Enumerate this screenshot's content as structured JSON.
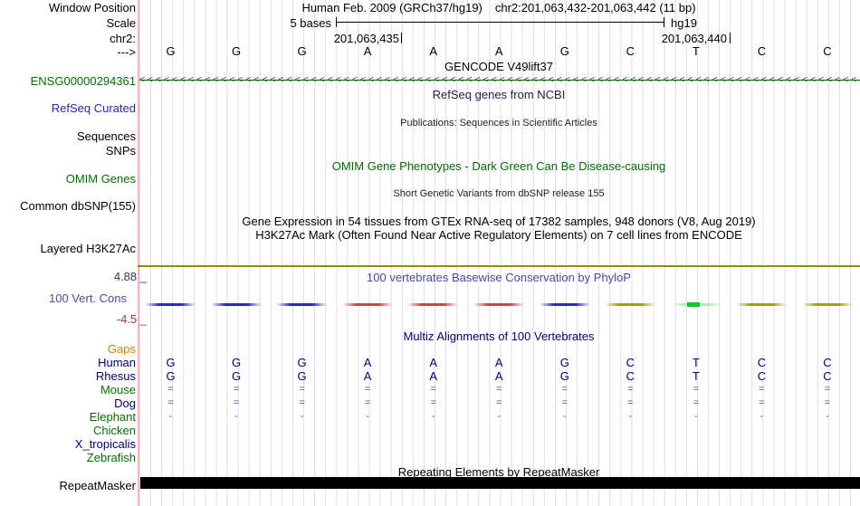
{
  "colors": {
    "grid_line": "#dcdcee",
    "left_edge_line": "#ffb3b3",
    "green_label": "#007200",
    "green_title": "#006e00",
    "dark_green_gene_line": "#005e00",
    "blue_label": "#2626bb",
    "navy": "#000080",
    "orange_gaps": "#d88000",
    "olive_baseline": "#998a00",
    "maroon_min": "#993939",
    "cons_title_blue": "#4a4aa8",
    "cons_blue": "#2929cc",
    "cons_red": "#cc4444",
    "cons_olive": "#a0a000",
    "cons_light_green": "#b4ecb4",
    "cons_bright_green": "#00cc33"
  },
  "header": {
    "assembly": "Human Feb. 2009 (GRCh37/hg19)",
    "position": "chr2:201,063,432-201,063,442 (11 bp)",
    "scale_value": "5 bases",
    "genome": "hg19",
    "tick_left": "201,063,435",
    "tick_right": "201,063,440"
  },
  "left_labels": {
    "window_position": "Window Position",
    "scale": "Scale",
    "chromosome": "chr2:",
    "strand": "--->",
    "gene_id": "ENSG00000294361",
    "refseq": "RefSeq Curated",
    "sequences": "Sequences",
    "snps": "SNPs",
    "omim": "OMIM Genes",
    "dbsnp": "Common dbSNP(155)",
    "h3k27ac": "Layered H3K27Ac",
    "cons_max": "4.88 _",
    "cons_name": "100 Vert. Cons",
    "cons_min": "-4.5 _",
    "repeatmasker": "RepeatMasker"
  },
  "track_titles": {
    "gencode": "GENCODE V49lift37",
    "refseq": "RefSeq genes from NCBI",
    "publications": "Publications: Sequences in Scientific Articles",
    "omim": "OMIM Gene Phenotypes - Dark Green Can Be Disease-causing",
    "dbsnp": "Short Genetic Variants from dbSNP release 155",
    "gtex": "Gene Expression in 54 tissues from GTEx RNA-seq of 17382 samples, 948 donors (V8, Aug 2019)",
    "h3k27ac": "H3K27Ac Mark (Often Found Near Active Regulatory Elements) on 7 cell lines from ENCODE",
    "phylop": "100 vertebrates Basewise Conservation by PhyloP",
    "multiz": "Multiz Alignments of 100 Vertebrates",
    "repeatmasker": "Repeating Elements by RepeatMasker"
  },
  "sequence": {
    "bases": [
      "G",
      "G",
      "G",
      "A",
      "A",
      "A",
      "G",
      "C",
      "T",
      "C",
      "C"
    ]
  },
  "conservation": {
    "per_base_color": [
      "blue",
      "blue",
      "blue",
      "red",
      "red",
      "red",
      "blue",
      "olive",
      "green",
      "olive",
      "olive"
    ]
  },
  "alignment": {
    "rows": [
      {
        "name": "Gaps",
        "label_color": "#d88000",
        "cells": [
          "",
          "",
          "",
          "",
          "",
          "",
          "",
          "",
          "",
          "",
          ""
        ]
      },
      {
        "name": "Human",
        "label_color": "#000080",
        "cells": [
          "G",
          "G",
          "G",
          "A",
          "A",
          "A",
          "G",
          "C",
          "T",
          "C",
          "C"
        ]
      },
      {
        "name": "Rhesus",
        "label_color": "#000080",
        "cells": [
          "G",
          "G",
          "G",
          "A",
          "A",
          "A",
          "G",
          "C",
          "T",
          "C",
          "C"
        ]
      },
      {
        "name": "Mouse",
        "label_color": "#007200",
        "cells": [
          "=",
          "=",
          "=",
          "=",
          "=",
          "=",
          "=",
          "=",
          "=",
          "=",
          "="
        ]
      },
      {
        "name": "Dog",
        "label_color": "#000080",
        "cells": [
          "=",
          "=",
          "=",
          "=",
          "=",
          "=",
          "=",
          "=",
          "=",
          "=",
          "="
        ]
      },
      {
        "name": "Elephant",
        "label_color": "#007200",
        "cells": [
          "-",
          "-",
          "-",
          "-",
          "-",
          "-",
          "-",
          "-",
          "-",
          "-",
          "-"
        ]
      },
      {
        "name": "Chicken",
        "label_color": "#007200",
        "cells": [
          "",
          "",
          "",
          "",
          "",
          "",
          "",
          "",
          "",
          "",
          ""
        ]
      },
      {
        "name": "X_tropicalis",
        "label_color": "#000080",
        "cells": [
          "",
          "",
          "",
          "",
          "",
          "",
          "",
          "",
          "",
          "",
          ""
        ]
      },
      {
        "name": "Zebrafish",
        "label_color": "#007200",
        "cells": [
          "",
          "",
          "",
          "",
          "",
          "",
          "",
          "",
          "",
          "",
          ""
        ]
      }
    ]
  }
}
